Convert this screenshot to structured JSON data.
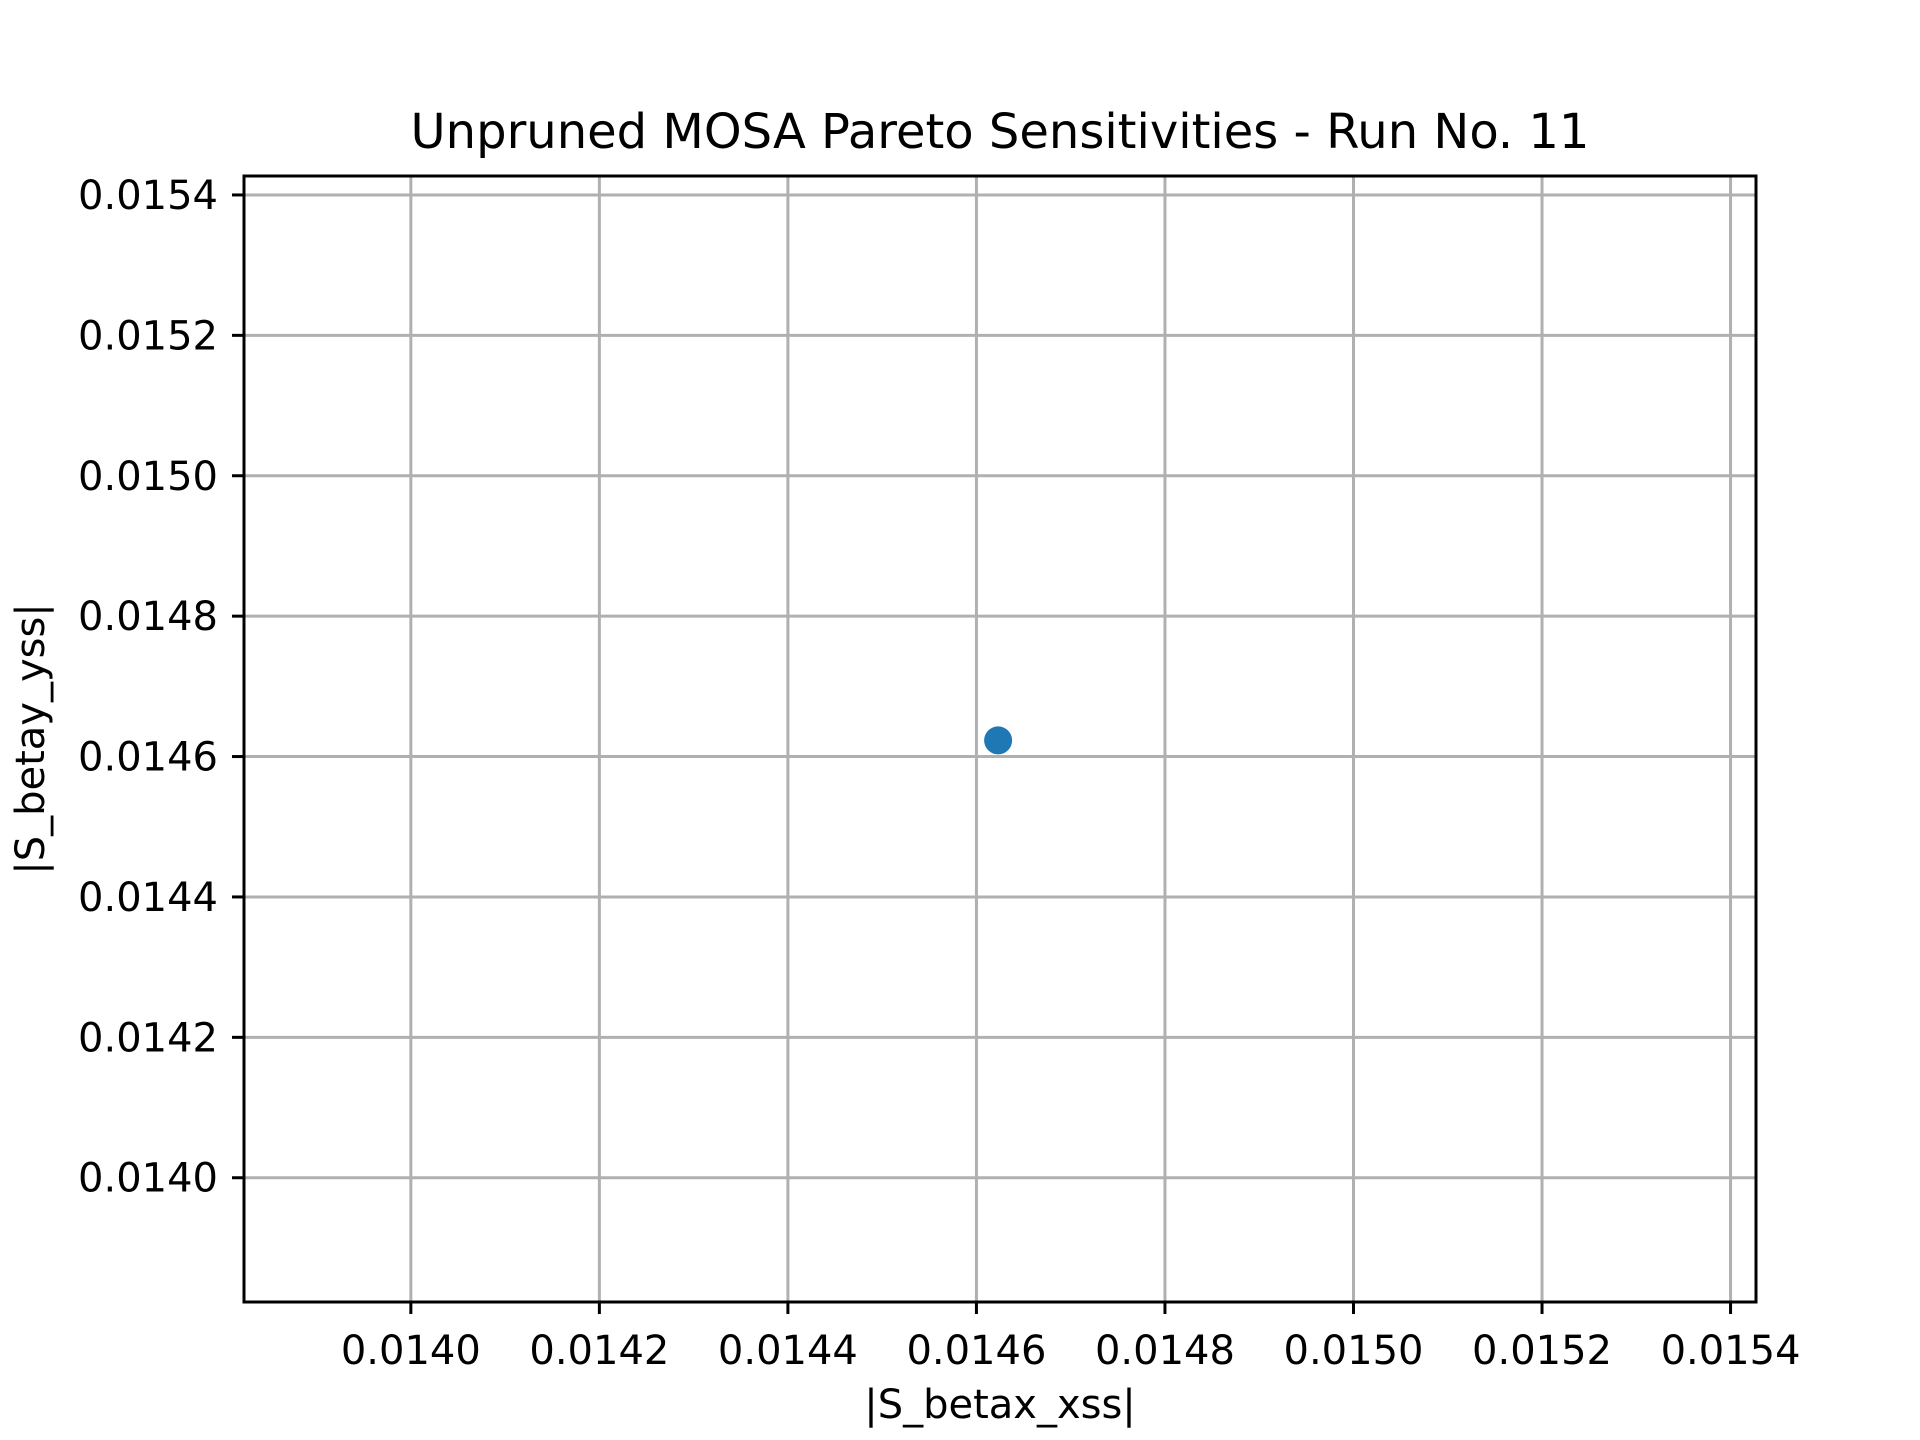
{
  "chart_data": {
    "type": "scatter",
    "title": "Unpruned MOSA Pareto Sensitivities - Run No. 11",
    "xlabel": "|S_betax_xss|",
    "ylabel": "|S_betay_yss|",
    "xlim": [
      0.013823,
      0.015427
    ],
    "ylim": [
      0.013823,
      0.015427
    ],
    "xticks": [
      "0.0140",
      "0.0142",
      "0.0144",
      "0.0146",
      "0.0148",
      "0.0150",
      "0.0152",
      "0.0154"
    ],
    "yticks": [
      "0.0140",
      "0.0142",
      "0.0144",
      "0.0146",
      "0.0148",
      "0.0150",
      "0.0152",
      "0.0154"
    ],
    "grid": true,
    "series": [
      {
        "color": "#1f77b4",
        "points": [
          {
            "x": 0.014623,
            "y": 0.014623
          }
        ]
      }
    ]
  }
}
